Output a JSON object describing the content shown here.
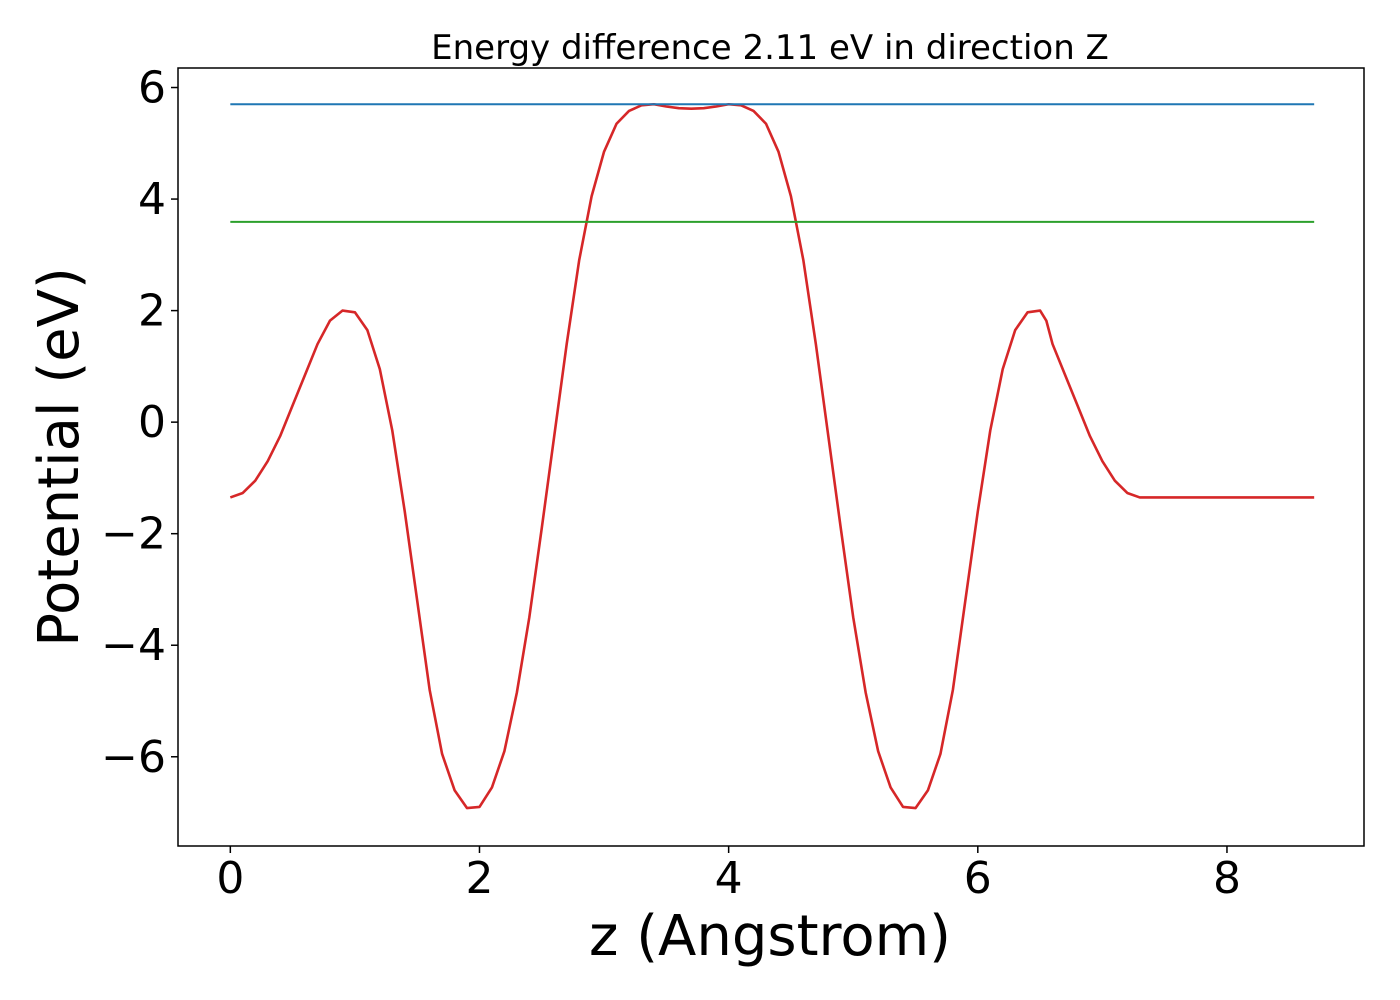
{
  "chart_data": {
    "type": "line",
    "title": "Energy difference 2.11 eV in direction Z",
    "xlabel": "z (Angstrom)",
    "ylabel": "Potential (eV)",
    "xlim": [
      -0.42,
      9.1
    ],
    "ylim": [
      -7.6,
      6.35
    ],
    "xticks": [
      0,
      2,
      4,
      6,
      8
    ],
    "yticks": [
      -6,
      -4,
      -2,
      0,
      2,
      4,
      6
    ],
    "xtick_labels": [
      "0",
      "2",
      "4",
      "6",
      "8"
    ],
    "ytick_labels": [
      "−6",
      "−4",
      "−2",
      "0",
      "2",
      "4",
      "6"
    ],
    "grid": false,
    "legend": "none",
    "series": [
      {
        "color": "#d62728",
        "x": [
          0.0,
          0.1,
          0.2,
          0.3,
          0.4,
          0.5,
          0.6,
          0.7,
          0.8,
          0.9,
          1.0,
          1.1,
          1.2,
          1.3,
          1.4,
          1.5,
          1.6,
          1.7,
          1.8,
          1.9,
          2.0,
          2.1,
          2.2,
          2.3,
          2.4,
          2.5,
          2.6,
          2.7,
          2.8,
          2.9,
          3.0,
          3.1,
          3.2,
          3.3,
          3.4,
          3.5,
          3.6,
          3.7,
          3.8,
          3.9,
          4.0,
          4.1,
          4.2,
          4.3,
          4.4,
          4.5,
          4.6,
          4.7,
          4.8,
          4.9,
          5.0,
          5.1,
          5.2,
          5.3,
          5.4,
          5.5,
          5.6,
          5.7,
          5.8,
          5.9,
          6.0,
          6.1,
          6.2,
          6.3,
          6.4,
          6.5,
          6.55,
          6.6,
          6.7,
          6.8,
          6.9,
          7.0,
          7.1,
          7.2,
          7.3,
          7.4,
          7.5,
          7.6,
          7.7,
          7.75,
          7.8,
          7.9,
          8.0,
          8.1,
          8.2,
          8.3,
          8.4,
          8.5,
          8.6,
          8.7
        ],
        "y": [
          -1.35,
          -1.27,
          -1.05,
          -0.7,
          -0.25,
          0.3,
          0.85,
          1.4,
          1.82,
          2.0,
          1.97,
          1.65,
          0.95,
          -0.15,
          -1.6,
          -3.2,
          -4.8,
          -5.95,
          -6.6,
          -6.92,
          -6.9,
          -6.55,
          -5.9,
          -4.85,
          -3.5,
          -1.9,
          -0.25,
          1.4,
          2.9,
          4.05,
          4.85,
          5.35,
          5.58,
          5.68,
          5.7,
          5.66,
          5.63,
          5.62,
          5.63,
          5.66,
          5.7,
          5.68,
          5.58,
          5.35,
          4.85,
          4.05,
          2.9,
          1.4,
          -0.25,
          -1.9,
          -3.5,
          -4.85,
          -5.9,
          -6.55,
          -6.9,
          -6.92,
          -6.6,
          -5.95,
          -4.8,
          -3.2,
          -1.6,
          -0.15,
          0.95,
          1.65,
          1.97,
          2.0,
          1.82,
          1.4,
          0.85,
          0.3,
          -0.25,
          -0.7,
          -1.05,
          -1.27,
          -1.35,
          -1.35,
          -1.35,
          -1.35,
          -1.35,
          -1.35,
          -1.35,
          -1.35,
          -1.35,
          -1.35,
          -1.35,
          -1.35,
          -1.35,
          -1.35,
          -1.35,
          -1.35
        ]
      },
      {
        "color": "#1f77b4",
        "x": [
          0.0,
          8.7
        ],
        "y": [
          5.7,
          5.7
        ]
      },
      {
        "color": "#2ca02c",
        "x": [
          0.0,
          8.7
        ],
        "y": [
          3.59,
          3.59
        ]
      }
    ]
  }
}
